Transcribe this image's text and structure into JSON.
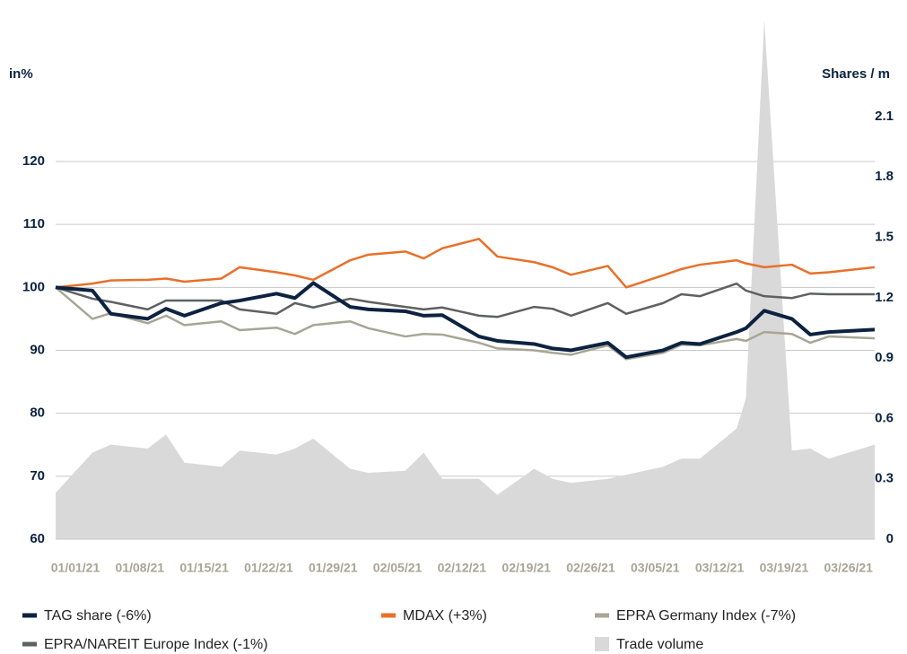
{
  "chart_data": {
    "type": "line",
    "y_label": "in%",
    "y2_label": "Shares / m",
    "x": [
      "01/01/21",
      "01/05/21",
      "01/07/21",
      "01/11/21",
      "01/13/21",
      "01/15/21",
      "01/19/21",
      "01/21/21",
      "01/25/21",
      "01/27/21",
      "01/29/21",
      "02/02/21",
      "02/04/21",
      "02/08/21",
      "02/10/21",
      "02/12/21",
      "02/16/21",
      "02/18/21",
      "02/22/21",
      "02/24/21",
      "02/26/21",
      "03/02/21",
      "03/04/21",
      "03/08/21",
      "03/10/21",
      "03/12/21",
      "03/16/21",
      "03/17/21",
      "03/19/21",
      "03/22/21",
      "03/24/21",
      "03/26/21",
      "03/31/21"
    ],
    "xticks": [
      "01/01/21",
      "01/08/21",
      "01/15/21",
      "01/22/21",
      "01/29/21",
      "02/05/21",
      "02/12/21",
      "02/19/21",
      "02/26/21",
      "03/05/21",
      "03/12/21",
      "03/19/21",
      "03/26/21"
    ],
    "ylim": [
      60,
      142.8
    ],
    "yticks": [
      60,
      70,
      80,
      90,
      100,
      110,
      120
    ],
    "y2lim": [
      0,
      2.59
    ],
    "y2ticks": [
      0,
      0.3,
      0.6,
      0.9,
      1.2,
      1.5,
      1.8,
      2.1
    ],
    "grid": true,
    "series": [
      {
        "name": "TAG share (-6%)",
        "color": "#0b2240",
        "values": [
          100,
          99.5,
          95.8,
          95,
          96.6,
          95.5,
          97.5,
          97.9,
          99,
          98.3,
          100.7,
          96.9,
          96.5,
          96.2,
          95.5,
          95.6,
          92.2,
          91.5,
          91,
          90.3,
          90,
          91.2,
          88.9,
          90,
          91.2,
          91,
          92.9,
          93.5,
          96.3,
          95,
          92.5,
          92.9,
          93.3
        ]
      },
      {
        "name": "MDAX (+3%)",
        "color": "#e8702a",
        "values": [
          100,
          100.6,
          101.1,
          101.2,
          101.4,
          100.9,
          101.4,
          103.2,
          102.4,
          101.9,
          101.2,
          104.3,
          105.2,
          105.7,
          104.6,
          106.2,
          107.7,
          104.9,
          104,
          103.2,
          102,
          103.4,
          100,
          101.9,
          102.9,
          103.6,
          104.3,
          103.8,
          103.2,
          103.6,
          102.2,
          102.4,
          103.2
        ]
      },
      {
        "name": "EPRA Germany Index (-7%)",
        "color": "#a8a595",
        "values": [
          100,
          95,
          95.9,
          94.3,
          95.5,
          94,
          94.6,
          93.2,
          93.6,
          92.6,
          94,
          94.6,
          93.5,
          92.2,
          92.6,
          92.5,
          91.2,
          90.3,
          90,
          89.6,
          89.3,
          90.8,
          88.6,
          89.6,
          90.9,
          90.8,
          91.8,
          91.5,
          92.9,
          92.6,
          91.2,
          92.2,
          91.9
        ]
      },
      {
        "name": "EPRA/NAREIT Europe Index (-1%)",
        "color": "#5f6062",
        "values": [
          100,
          98.2,
          97.7,
          96.5,
          97.9,
          97.9,
          97.9,
          96.5,
          95.8,
          97.5,
          96.8,
          98.2,
          97.7,
          96.9,
          96.5,
          96.8,
          95.5,
          95.3,
          96.9,
          96.6,
          95.5,
          97.5,
          95.8,
          97.5,
          98.9,
          98.6,
          100.6,
          99.5,
          98.6,
          98.3,
          99,
          98.9,
          98.9
        ]
      },
      {
        "name": "Trade volume",
        "color": "#d9d9d9",
        "type": "area",
        "axis": "y2",
        "values": [
          0.23,
          0.43,
          0.47,
          0.45,
          0.52,
          0.38,
          0.36,
          0.44,
          0.42,
          0.45,
          0.5,
          0.35,
          0.33,
          0.34,
          0.43,
          0.3,
          0.3,
          0.22,
          0.35,
          0.3,
          0.28,
          0.3,
          0.32,
          0.36,
          0.4,
          0.4,
          0.55,
          0.7,
          2.58,
          0.44,
          0.45,
          0.4,
          0.47
        ]
      }
    ]
  }
}
